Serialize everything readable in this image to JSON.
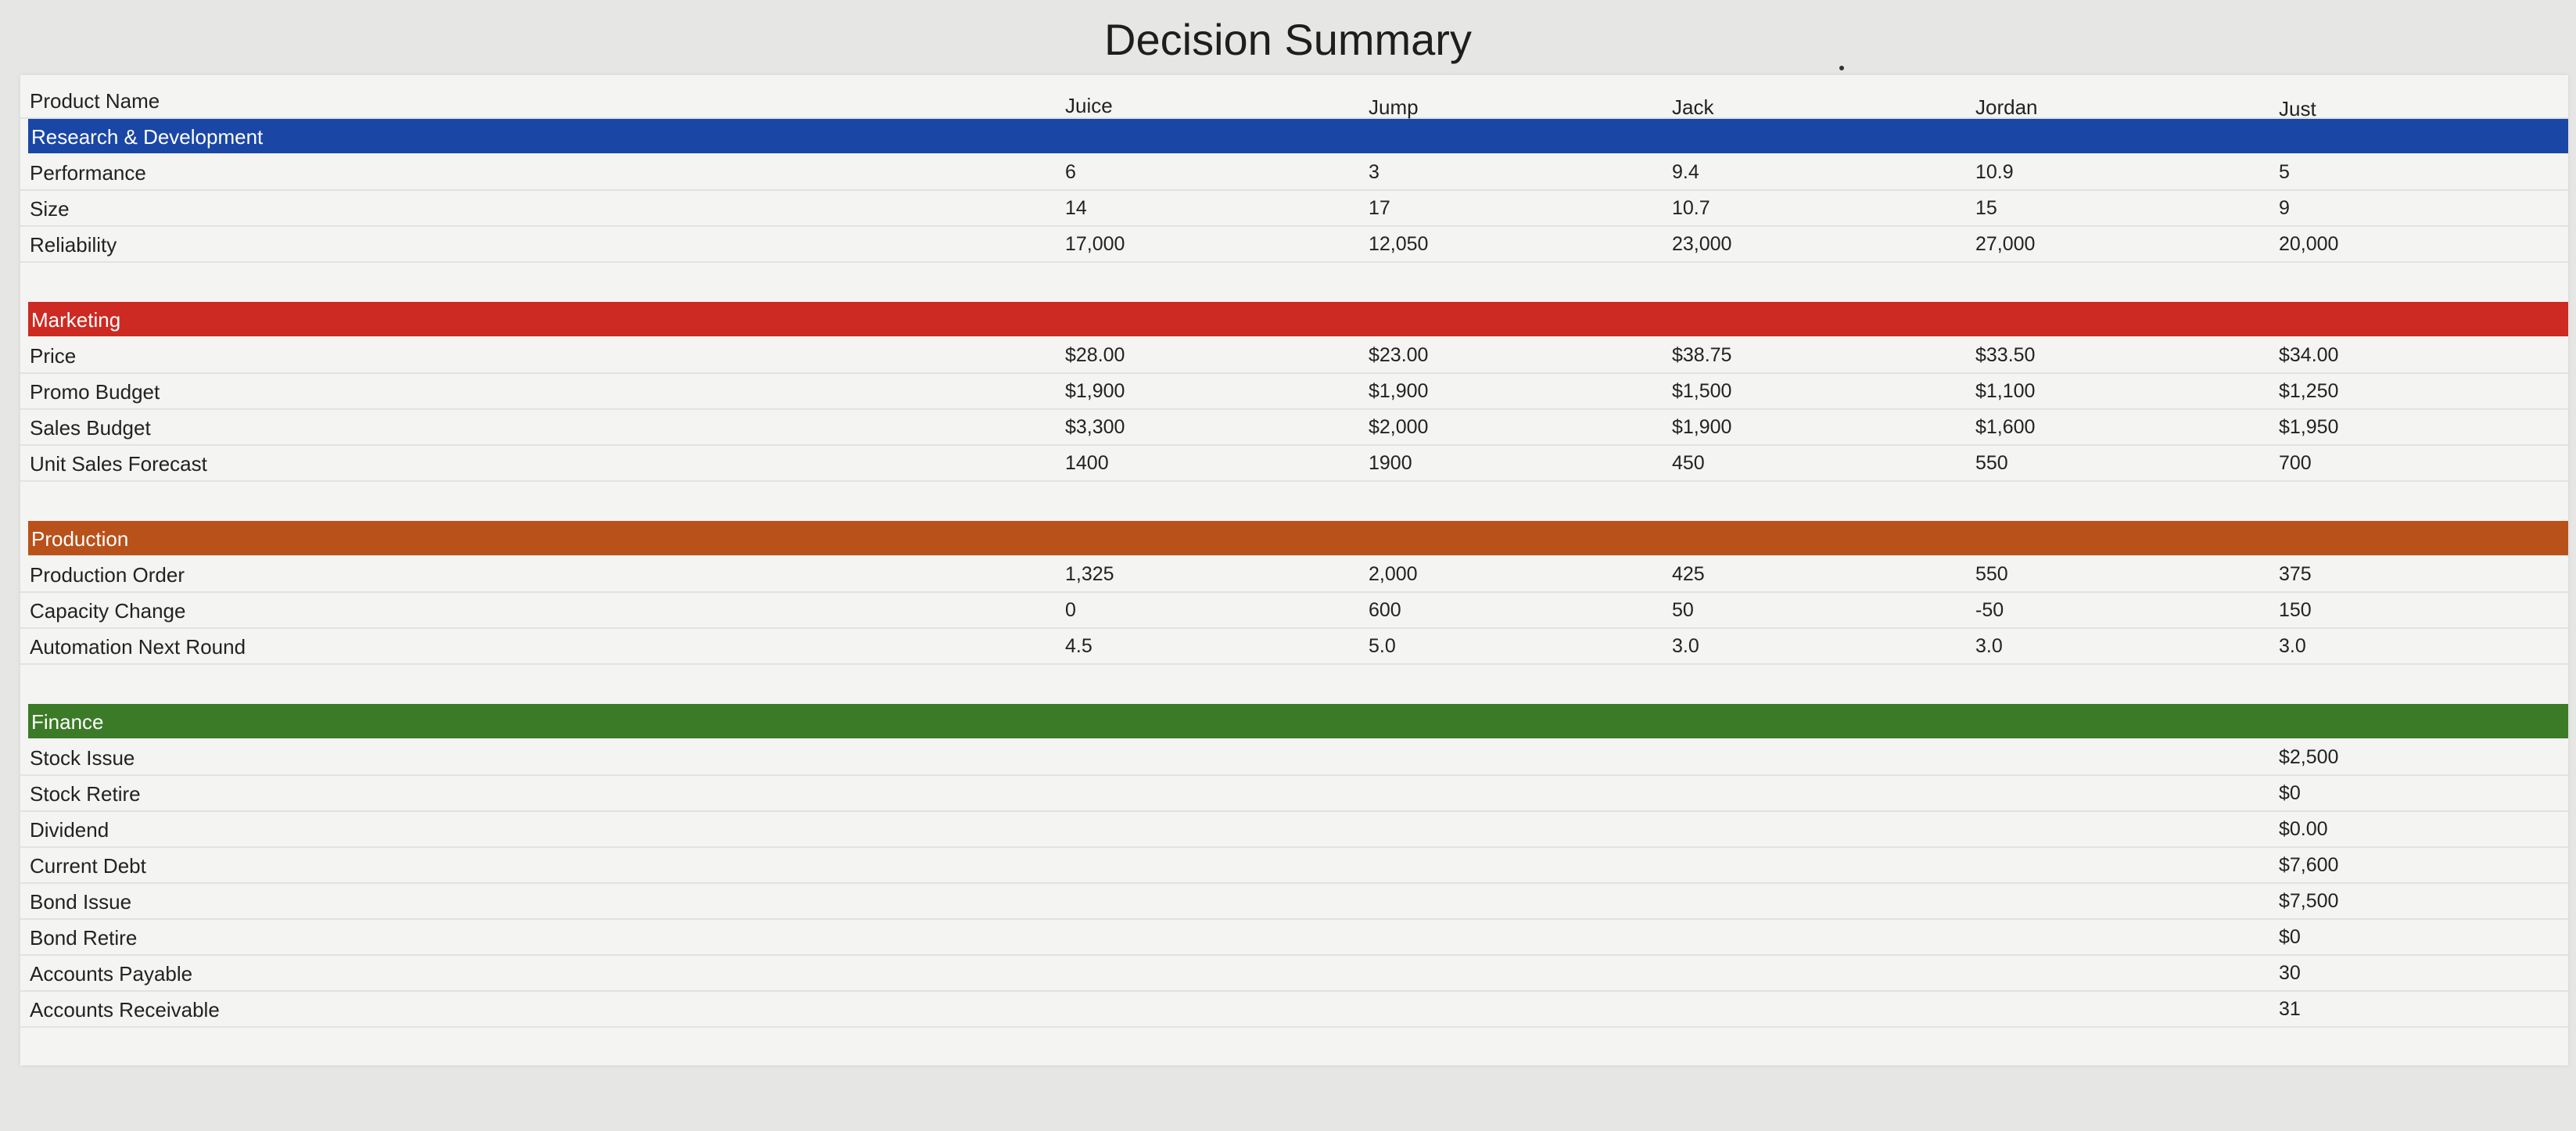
{
  "title": "Decision Summary",
  "products": [
    "Juice",
    "Jump",
    "Jack",
    "Jordan",
    "Just"
  ],
  "header_label": "Product Name",
  "sections": {
    "rd": {
      "label": "Research & Development",
      "rows": [
        {
          "label": "Performance",
          "values": [
            "6",
            "3",
            "9.4",
            "10.9",
            "5"
          ]
        },
        {
          "label": "Size",
          "values": [
            "14",
            "17",
            "10.7",
            "15",
            "9"
          ]
        },
        {
          "label": "Reliability",
          "values": [
            "17,000",
            "12,050",
            "23,000",
            "27,000",
            "20,000"
          ]
        }
      ]
    },
    "marketing": {
      "label": "Marketing",
      "rows": [
        {
          "label": "Price",
          "values": [
            "$28.00",
            "$23.00",
            "$38.75",
            "$33.50",
            "$34.00"
          ]
        },
        {
          "label": "Promo Budget",
          "values": [
            "$1,900",
            "$1,900",
            "$1,500",
            "$1,100",
            "$1,250"
          ]
        },
        {
          "label": "Sales Budget",
          "values": [
            "$3,300",
            "$2,000",
            "$1,900",
            "$1,600",
            "$1,950"
          ]
        },
        {
          "label": "Unit Sales Forecast",
          "values": [
            "1400",
            "1900",
            "450",
            "550",
            "700"
          ]
        }
      ]
    },
    "production": {
      "label": "Production",
      "rows": [
        {
          "label": "Production Order",
          "values": [
            "1,325",
            "2,000",
            "425",
            "550",
            "375"
          ]
        },
        {
          "label": "Capacity Change",
          "values": [
            "0",
            "600",
            "50",
            "-50",
            "150"
          ]
        },
        {
          "label": "Automation Next Round",
          "values": [
            "4.5",
            "5.0",
            "3.0",
            "3.0",
            "3.0"
          ]
        }
      ]
    },
    "finance": {
      "label": "Finance",
      "rows": [
        {
          "label": "Stock Issue",
          "value": "$2,500"
        },
        {
          "label": "Stock Retire",
          "value": "$0"
        },
        {
          "label": "Dividend",
          "value": "$0.00"
        },
        {
          "label": "Current Debt",
          "value": "$7,600"
        },
        {
          "label": "Bond Issue",
          "value": "$7,500"
        },
        {
          "label": "Bond Retire",
          "value": "$0"
        },
        {
          "label": "Accounts Payable",
          "value": "30"
        },
        {
          "label": "Accounts Receivable",
          "value": "31"
        }
      ]
    }
  }
}
